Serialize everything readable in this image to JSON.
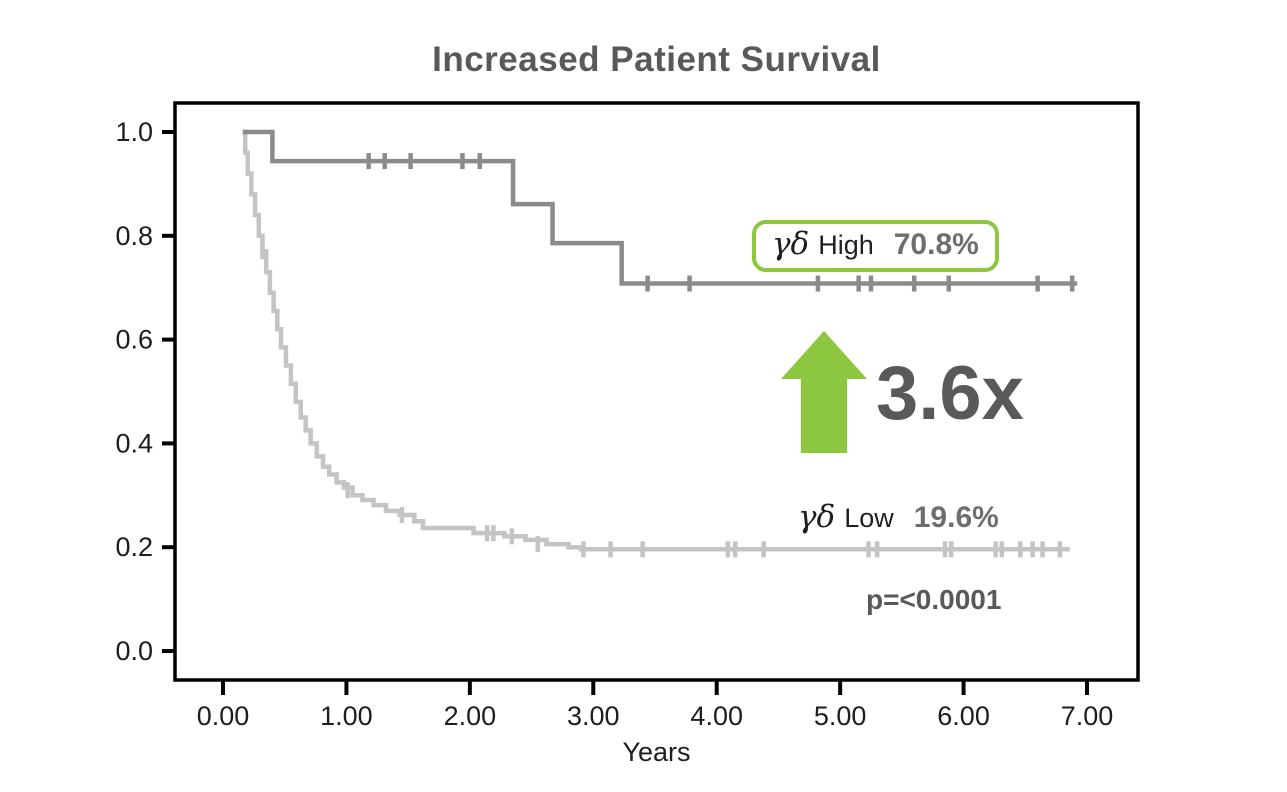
{
  "title": "Increased Patient Survival",
  "colors": {
    "green": "#8dc63f",
    "high_curve": "#8b8b8b",
    "low_curve": "#c4c4c4",
    "dark_text": "#58595b",
    "value_text": "#6d6e71",
    "label_text": "#231f20",
    "axis": "#000000"
  },
  "annotations": {
    "fold_change": "3.6x",
    "p_value": "p=<0.0001"
  },
  "legend_high": {
    "symbol": "γδ",
    "label": "High",
    "value": "70.8%"
  },
  "legend_low": {
    "symbol": "γδ",
    "label": "Low",
    "value": "19.6%"
  },
  "chart_data": {
    "type": "line",
    "subtype": "kaplan-meier-step",
    "title": "Increased Patient Survival",
    "xlabel": "Years",
    "ylabel": "",
    "xlim": [
      -0.39,
      7.41
    ],
    "ylim": [
      -0.056,
      1.056
    ],
    "xticks": [
      0,
      1,
      2,
      3,
      4,
      5,
      6,
      7
    ],
    "xtick_labels": [
      "0.00",
      "1.00",
      "2.00",
      "3.00",
      "4.00",
      "5.00",
      "6.00",
      "7.00"
    ],
    "yticks": [
      1.0,
      0.8,
      0.6,
      0.4,
      0.2,
      0.0
    ],
    "ytick_labels": [
      "1.0",
      "0.8",
      "0.6",
      "0.4",
      "0.2",
      "0.0"
    ],
    "grid": false,
    "legend_position": "annotated-on-plot",
    "p_value": "p=<0.0001",
    "fold_change": "3.6x",
    "series": [
      {
        "name": "γδ High",
        "final_survival": 0.708,
        "final_label": "70.8%",
        "color": "#8b8b8b",
        "steps": [
          [
            0.16,
            1.0
          ],
          [
            0.4,
            1.0
          ],
          [
            0.4,
            0.944
          ],
          [
            2.35,
            0.944
          ],
          [
            2.35,
            0.861
          ],
          [
            2.67,
            0.861
          ],
          [
            2.67,
            0.786
          ],
          [
            3.23,
            0.786
          ],
          [
            3.23,
            0.708
          ],
          [
            6.92,
            0.708
          ]
        ],
        "censors": [
          [
            1.18,
            0.944
          ],
          [
            1.31,
            0.944
          ],
          [
            1.52,
            0.944
          ],
          [
            1.94,
            0.944
          ],
          [
            2.08,
            0.944
          ],
          [
            3.44,
            0.708
          ],
          [
            3.78,
            0.708
          ],
          [
            4.82,
            0.708
          ],
          [
            5.15,
            0.708
          ],
          [
            5.25,
            0.708
          ],
          [
            5.6,
            0.708
          ],
          [
            5.88,
            0.708
          ],
          [
            6.6,
            0.708
          ],
          [
            6.88,
            0.708
          ]
        ]
      },
      {
        "name": "γδ Low",
        "final_survival": 0.196,
        "final_label": "19.6%",
        "color": "#c4c4c4",
        "steps": [
          [
            0.16,
            1.0
          ],
          [
            0.18,
            0.96
          ],
          [
            0.2,
            0.92
          ],
          [
            0.23,
            0.88
          ],
          [
            0.26,
            0.84
          ],
          [
            0.29,
            0.8
          ],
          [
            0.32,
            0.77
          ],
          [
            0.35,
            0.73
          ],
          [
            0.38,
            0.69
          ],
          [
            0.41,
            0.655
          ],
          [
            0.44,
            0.62
          ],
          [
            0.47,
            0.585
          ],
          [
            0.51,
            0.55
          ],
          [
            0.55,
            0.515
          ],
          [
            0.59,
            0.48
          ],
          [
            0.63,
            0.45
          ],
          [
            0.67,
            0.425
          ],
          [
            0.71,
            0.4
          ],
          [
            0.76,
            0.375
          ],
          [
            0.81,
            0.355
          ],
          [
            0.86,
            0.34
          ],
          [
            0.92,
            0.325
          ],
          [
            0.98,
            0.315
          ],
          [
            1.05,
            0.3
          ],
          [
            1.13,
            0.291
          ],
          [
            1.22,
            0.281
          ],
          [
            1.32,
            0.27
          ],
          [
            1.43,
            0.262
          ],
          [
            1.55,
            0.25
          ],
          [
            1.62,
            0.237
          ],
          [
            2.03,
            0.227
          ],
          [
            2.28,
            0.221
          ],
          [
            2.45,
            0.214
          ],
          [
            2.62,
            0.206
          ],
          [
            2.8,
            0.2
          ],
          [
            2.9,
            0.196
          ],
          [
            6.86,
            0.196
          ]
        ],
        "censors": [
          [
            0.32,
            0.77
          ],
          [
            1.01,
            0.31
          ],
          [
            1.45,
            0.262
          ],
          [
            2.14,
            0.227
          ],
          [
            2.19,
            0.227
          ],
          [
            2.34,
            0.221
          ],
          [
            2.55,
            0.206
          ],
          [
            2.92,
            0.196
          ],
          [
            3.14,
            0.196
          ],
          [
            3.4,
            0.196
          ],
          [
            4.09,
            0.196
          ],
          [
            4.15,
            0.196
          ],
          [
            4.38,
            0.196
          ],
          [
            5.23,
            0.196
          ],
          [
            5.3,
            0.196
          ],
          [
            5.85,
            0.196
          ],
          [
            5.9,
            0.196
          ],
          [
            6.26,
            0.196
          ],
          [
            6.31,
            0.196
          ],
          [
            6.46,
            0.196
          ],
          [
            6.56,
            0.196
          ],
          [
            6.64,
            0.196
          ],
          [
            6.78,
            0.196
          ]
        ]
      }
    ]
  }
}
